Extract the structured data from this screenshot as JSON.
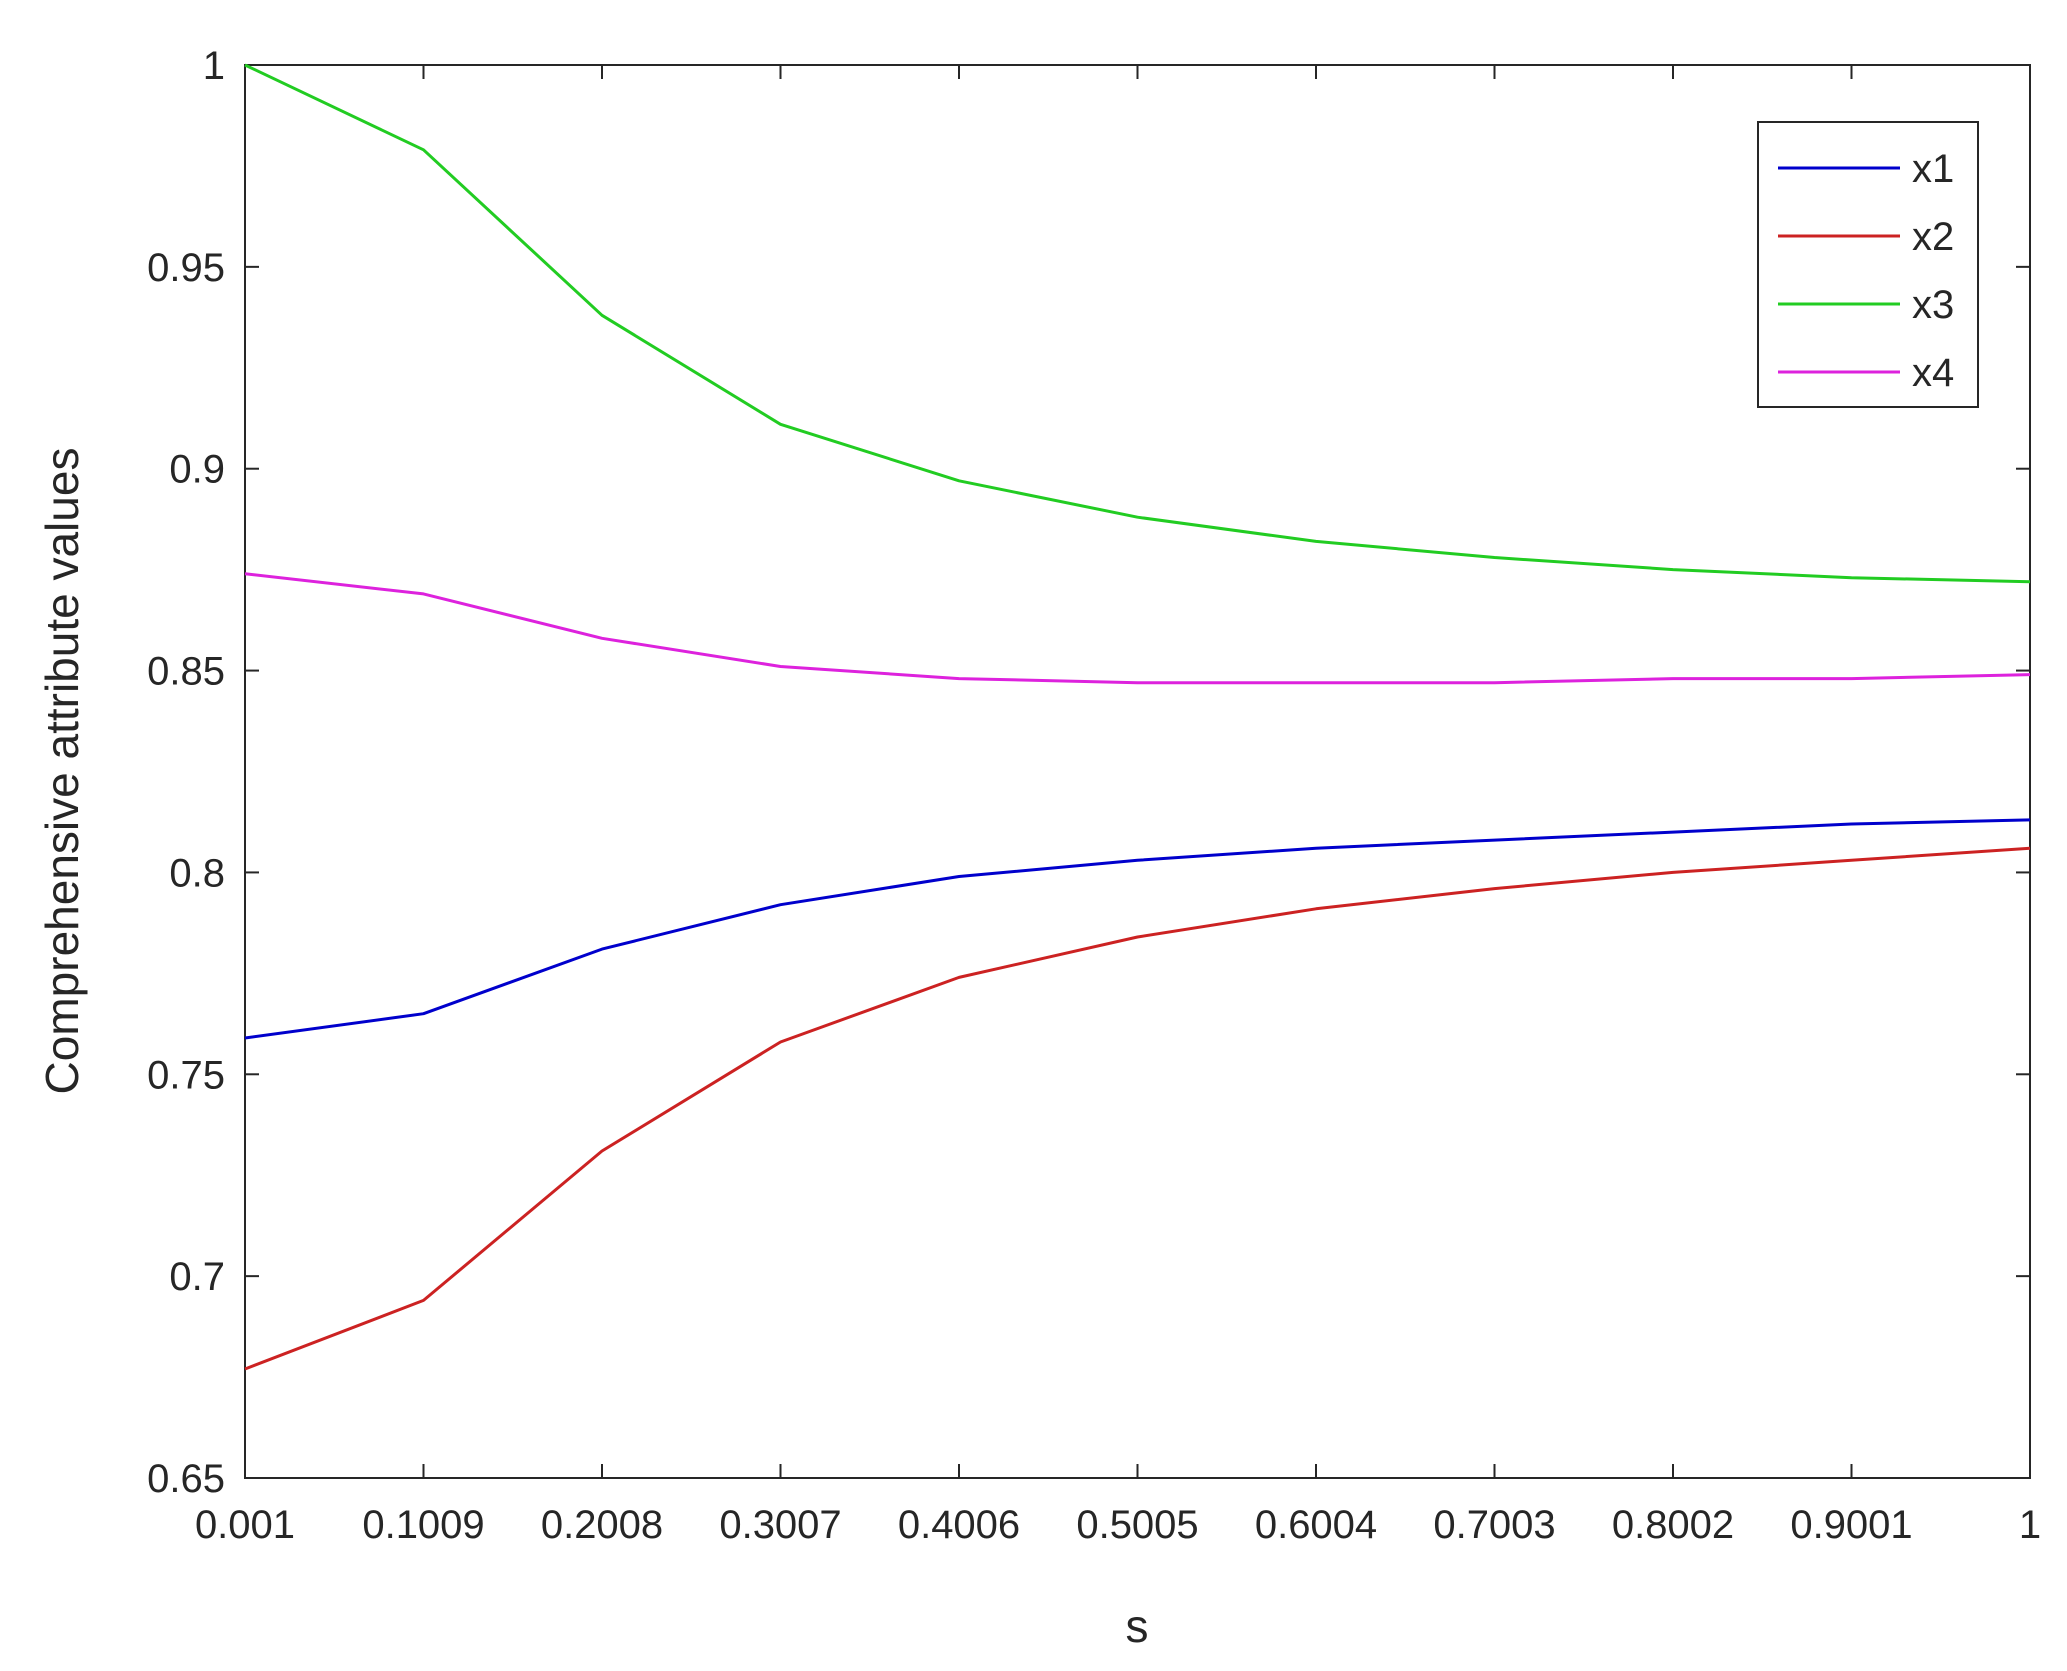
{
  "chart_data": {
    "type": "line",
    "title": "",
    "xlabel": "s",
    "ylabel": "Comprehensive attribute values",
    "xlim": [
      0.001,
      1
    ],
    "ylim": [
      0.65,
      1
    ],
    "x_ticks": [
      "0.001",
      "0.1009",
      "0.2008",
      "0.3007",
      "0.4006",
      "0.5005",
      "0.6004",
      "0.7003",
      "0.8002",
      "0.9001",
      "1"
    ],
    "x_tick_values": [
      0.001,
      0.1009,
      0.2008,
      0.3007,
      0.4006,
      0.5005,
      0.6004,
      0.7003,
      0.8002,
      0.9001,
      1
    ],
    "y_ticks": [
      "0.65",
      "0.7",
      "0.75",
      "0.8",
      "0.85",
      "0.9",
      "0.95",
      "1"
    ],
    "y_tick_values": [
      0.65,
      0.7,
      0.75,
      0.8,
      0.85,
      0.9,
      0.95,
      1
    ],
    "grid": false,
    "legend_position": "top-right",
    "x": [
      0.001,
      0.1009,
      0.2008,
      0.3007,
      0.4006,
      0.5005,
      0.6004,
      0.7003,
      0.8002,
      0.9001,
      1
    ],
    "series": [
      {
        "name": "x1",
        "color": "#0000cc",
        "values": [
          0.759,
          0.765,
          0.781,
          0.792,
          0.799,
          0.803,
          0.806,
          0.808,
          0.81,
          0.812,
          0.813
        ]
      },
      {
        "name": "x2",
        "color": "#cc2222",
        "values": [
          0.677,
          0.694,
          0.731,
          0.758,
          0.774,
          0.784,
          0.791,
          0.796,
          0.8,
          0.803,
          0.806
        ]
      },
      {
        "name": "x3",
        "color": "#22cc22",
        "values": [
          1.0,
          0.979,
          0.938,
          0.911,
          0.897,
          0.888,
          0.882,
          0.878,
          0.875,
          0.873,
          0.872
        ]
      },
      {
        "name": "x4",
        "color": "#dd22dd",
        "values": [
          0.874,
          0.869,
          0.858,
          0.851,
          0.848,
          0.847,
          0.847,
          0.847,
          0.848,
          0.848,
          0.849
        ]
      }
    ]
  }
}
